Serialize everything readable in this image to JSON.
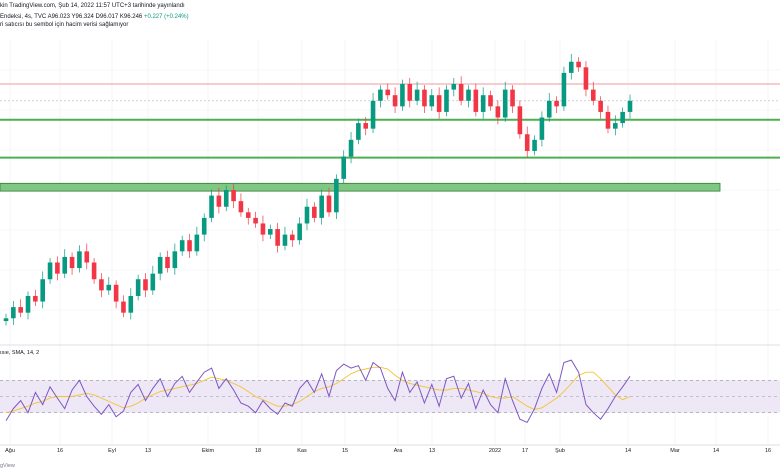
{
  "header": {
    "line1": "kin TradingView.com, Şub 14, 2022 11:57 UTC+3 tarihinde yayınlandı",
    "symbol": "Endeksi, 4s, TVC",
    "ohlc": {
      "o": "A96.023",
      "h": "Y96.324",
      "l": "D96.017",
      "c": "K96.246",
      "chg": "+0.227 (+0.24%)"
    },
    "line3": "ri satıcısı bu sembol için hacim verisi sağlamıyor"
  },
  "rsi_legend": "ısıe, SMA, 14, 2",
  "watermark": "gView",
  "colors": {
    "up": "#089981",
    "down": "#f23645",
    "support": "#4caf50",
    "zone_fill": "#81c784",
    "resistance": "#ef9a9a",
    "rsi_line": "#7e57c2",
    "rsi_ma": "#f4c430",
    "rsi_bg": "#ede7f6"
  },
  "chart_data": [
    {
      "type": "candlestick",
      "title": "Endeksi, 4s, TVC",
      "x_tick_labels": [
        "Ağu",
        "16",
        "Eyl",
        "13",
        "Ekim",
        "18",
        "Kas",
        "15",
        "Ara",
        "13",
        "2022",
        "17",
        "Şub",
        "14",
        "Mar",
        "14",
        "16"
      ],
      "ylim": [
        92.0,
        97.2
      ],
      "closes": [
        92.3,
        92.5,
        92.4,
        92.7,
        92.6,
        93.0,
        93.3,
        93.1,
        93.4,
        93.2,
        93.5,
        93.3,
        93.0,
        92.8,
        92.9,
        92.6,
        92.4,
        92.7,
        93.0,
        92.8,
        93.1,
        93.4,
        93.2,
        93.5,
        93.7,
        93.5,
        93.8,
        94.1,
        94.5,
        94.3,
        94.6,
        94.4,
        94.2,
        94.1,
        94.0,
        93.8,
        93.9,
        93.6,
        93.8,
        93.7,
        94.0,
        94.3,
        94.1,
        94.5,
        94.2,
        94.8,
        95.2,
        95.5,
        95.8,
        95.7,
        96.2,
        96.4,
        96.3,
        96.1,
        96.5,
        96.2,
        96.4,
        96.1,
        96.3,
        96.0,
        96.4,
        96.5,
        96.2,
        96.4,
        96.0,
        96.3,
        96.1,
        95.9,
        96.4,
        96.1,
        95.6,
        95.3,
        95.5,
        95.9,
        96.2,
        96.1,
        96.7,
        96.9,
        96.8,
        96.4,
        96.2,
        96.0,
        95.7,
        95.8,
        96.0,
        96.2
      ],
      "horizontal_levels": [
        {
          "kind": "resistance",
          "price": 96.5
        },
        {
          "kind": "support",
          "price": 95.86
        },
        {
          "kind": "support",
          "price": 95.18
        },
        {
          "kind": "support_zone",
          "from": 94.58,
          "to": 94.72
        }
      ]
    },
    {
      "type": "line",
      "title": "RSI",
      "ylim": [
        0,
        100
      ],
      "levels": [
        30,
        50,
        70
      ],
      "series": [
        {
          "values": [
            20,
            35,
            45,
            30,
            55,
            40,
            62,
            48,
            35,
            58,
            70,
            50,
            38,
            28,
            40,
            25,
            32,
            55,
            65,
            45,
            60,
            72,
            50,
            66,
            75,
            55,
            68,
            80,
            85,
            60,
            72,
            58,
            42,
            38,
            30,
            45,
            35,
            28,
            42,
            38,
            60,
            70,
            55,
            78,
            50,
            82,
            90,
            85,
            88,
            70,
            92,
            85,
            60,
            45,
            80,
            55,
            68,
            42,
            65,
            38,
            72,
            75,
            48,
            66,
            35,
            58,
            40,
            30,
            72,
            45,
            22,
            18,
            35,
            60,
            78,
            55,
            92,
            95,
            80,
            40,
            30,
            22,
            35,
            50,
            62,
            75
          ]
        },
        {
          "values": [
            30,
            32,
            35,
            38,
            42,
            44,
            48,
            50,
            50,
            50,
            52,
            54,
            52,
            48,
            44,
            40,
            36,
            38,
            42,
            48,
            52,
            56,
            58,
            60,
            62,
            64,
            66,
            70,
            74,
            72,
            70,
            66,
            62,
            56,
            50,
            46,
            42,
            38,
            38,
            40,
            44,
            50,
            56,
            60,
            62,
            66,
            72,
            78,
            82,
            84,
            86,
            86,
            84,
            76,
            70,
            66,
            64,
            62,
            60,
            58,
            58,
            60,
            60,
            58,
            56,
            54,
            50,
            48,
            48,
            50,
            44,
            38,
            34,
            36,
            42,
            48,
            56,
            66,
            76,
            80,
            80,
            72,
            62,
            52,
            46,
            50
          ]
        }
      ]
    }
  ]
}
